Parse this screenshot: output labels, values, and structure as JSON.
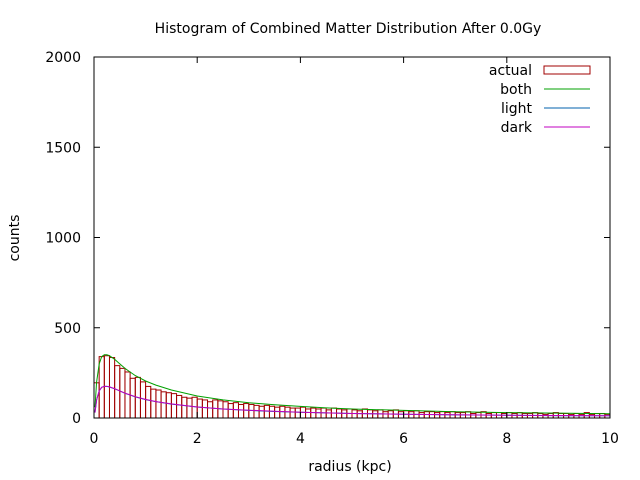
{
  "chart_data": {
    "type": "bar",
    "title": "Histogram of Combined Matter Distribution After 0.0Gy",
    "xlabel": "radius (kpc)",
    "ylabel": "counts",
    "xlim": [
      0,
      10
    ],
    "ylim": [
      0,
      2000
    ],
    "xticks": [
      0,
      2,
      4,
      6,
      8,
      10
    ],
    "yticks": [
      0,
      500,
      1000,
      1500,
      2000
    ],
    "bin_width": 0.1,
    "grid": false,
    "legend_position": "top-right",
    "series": [
      {
        "name": "actual",
        "type": "histogram",
        "color": "#a00000",
        "bin_centers": [
          0.05,
          0.15,
          0.25,
          0.35,
          0.45,
          0.55,
          0.65,
          0.75,
          0.85,
          0.95,
          1.05,
          1.15,
          1.25,
          1.35,
          1.45,
          1.55,
          1.65,
          1.75,
          1.85,
          1.95,
          2.05,
          2.15,
          2.25,
          2.35,
          2.45,
          2.55,
          2.65,
          2.75,
          2.85,
          2.95,
          3.05,
          3.15,
          3.25,
          3.35,
          3.45,
          3.55,
          3.65,
          3.75,
          3.85,
          3.95,
          4.05,
          4.15,
          4.25,
          4.35,
          4.45,
          4.55,
          4.65,
          4.75,
          4.85,
          4.95,
          5.05,
          5.15,
          5.25,
          5.35,
          5.45,
          5.55,
          5.65,
          5.75,
          5.85,
          5.95,
          6.05,
          6.15,
          6.25,
          6.35,
          6.45,
          6.55,
          6.65,
          6.75,
          6.85,
          6.95,
          7.05,
          7.15,
          7.25,
          7.35,
          7.45,
          7.55,
          7.65,
          7.75,
          7.85,
          7.95,
          8.05,
          8.15,
          8.25,
          8.35,
          8.45,
          8.55,
          8.65,
          8.75,
          8.85,
          8.95,
          9.05,
          9.15,
          9.25,
          9.35,
          9.45,
          9.55,
          9.65,
          9.75,
          9.85,
          9.95
        ],
        "values": [
          195,
          340,
          345,
          335,
          290,
          275,
          255,
          220,
          225,
          200,
          175,
          160,
          155,
          145,
          140,
          135,
          125,
          115,
          110,
          115,
          105,
          100,
          90,
          100,
          95,
          90,
          80,
          85,
          75,
          80,
          75,
          70,
          65,
          70,
          65,
          60,
          65,
          60,
          55,
          55,
          60,
          50,
          55,
          50,
          55,
          45,
          55,
          50,
          45,
          50,
          45,
          40,
          50,
          45,
          40,
          45,
          35,
          40,
          45,
          35,
          40,
          35,
          40,
          30,
          35,
          35,
          30,
          35,
          30,
          35,
          30,
          30,
          35,
          25,
          30,
          35,
          25,
          30,
          30,
          25,
          30,
          25,
          30,
          25,
          25,
          30,
          25,
          20,
          25,
          30,
          25,
          25,
          20,
          25,
          20,
          30,
          20,
          25,
          25,
          20
        ]
      },
      {
        "name": "both",
        "type": "line",
        "color": "#00a000",
        "x": [
          0.02,
          0.05,
          0.1,
          0.15,
          0.2,
          0.25,
          0.3,
          0.4,
          0.5,
          0.6,
          0.8,
          1.0,
          1.2,
          1.5,
          2.0,
          2.5,
          3.0,
          3.5,
          4.0,
          4.5,
          5.0,
          6.0,
          7.0,
          8.0,
          9.0,
          10.0
        ],
        "y": [
          60,
          200,
          300,
          340,
          350,
          350,
          345,
          325,
          300,
          275,
          235,
          205,
          182,
          155,
          122,
          100,
          85,
          73,
          64,
          56,
          50,
          42,
          35,
          30,
          27,
          24
        ]
      },
      {
        "name": "light",
        "type": "line",
        "color": "#0060ad",
        "x": [
          0.02,
          0.05,
          0.1,
          0.15,
          0.2,
          0.25,
          0.3,
          0.4,
          0.5,
          0.6,
          0.8,
          1.0,
          1.2,
          1.5,
          2.0,
          2.5,
          3.0,
          3.5,
          4.0,
          4.5,
          5.0,
          6.0,
          7.0,
          8.0,
          9.0,
          10.0
        ],
        "y": [
          30,
          100,
          150,
          170,
          175,
          175,
          172,
          162,
          150,
          137,
          117,
          102,
          91,
          77,
          61,
          50,
          42,
          36,
          32,
          28,
          25,
          21,
          17,
          15,
          13,
          12
        ]
      },
      {
        "name": "dark",
        "type": "line",
        "color": "#c000c0",
        "x": [
          0.02,
          0.05,
          0.1,
          0.15,
          0.2,
          0.25,
          0.3,
          0.4,
          0.5,
          0.6,
          0.8,
          1.0,
          1.2,
          1.5,
          2.0,
          2.5,
          3.0,
          3.5,
          4.0,
          4.5,
          5.0,
          6.0,
          7.0,
          8.0,
          9.0,
          10.0
        ],
        "y": [
          30,
          100,
          150,
          170,
          175,
          175,
          173,
          163,
          150,
          138,
          118,
          103,
          91,
          78,
          61,
          50,
          43,
          37,
          32,
          28,
          25,
          21,
          18,
          15,
          14,
          12
        ]
      }
    ]
  }
}
